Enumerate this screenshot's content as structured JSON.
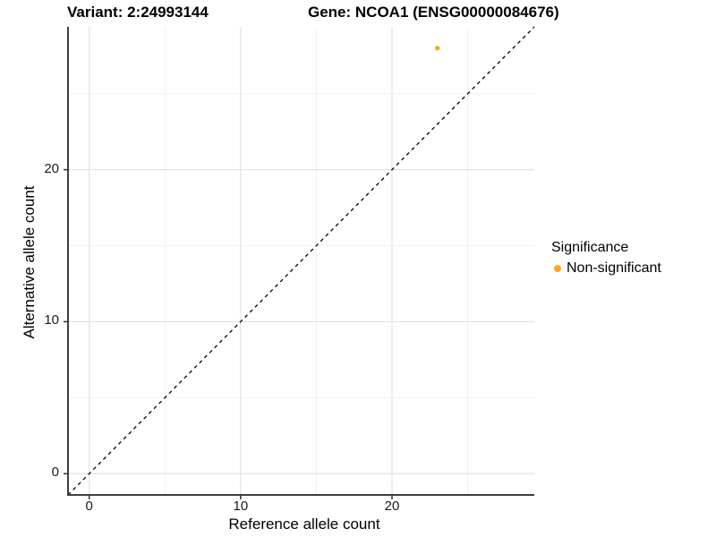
{
  "chart_data": {
    "type": "scatter",
    "title_left": "Variant: 2:24993144",
    "title_right": "Gene: NCOA1 (ENSG00000084676)",
    "xlabel": "Reference allele count",
    "ylabel": "Alternative allele count",
    "xlim": [
      -1.4,
      29.4
    ],
    "ylim": [
      -1.4,
      29.4
    ],
    "x_major_ticks": [
      0,
      10,
      20
    ],
    "y_major_ticks": [
      0,
      10,
      20
    ],
    "x_minor_gridlines": [
      5,
      15,
      25
    ],
    "y_minor_gridlines": [
      5,
      15,
      25
    ],
    "grid": "major+minor",
    "points": [
      {
        "x": 23,
        "y": 28,
        "series": "Non-significant"
      }
    ],
    "point_color": "#FFA520",
    "identity_line": {
      "slope": 1,
      "intercept": 0,
      "style": "dashed",
      "color": "#000000"
    },
    "legend": {
      "title": "Significance",
      "position": "right",
      "items": [
        {
          "label": "Non-significant",
          "color": "#FFA520"
        }
      ]
    },
    "colors": {
      "gridline_major": "#E2E2E2",
      "gridline_minor": "#F0F0F0",
      "axis_line": "#3E3E3E",
      "tick_mark": "#333333",
      "background": "#FFFFFF"
    }
  }
}
